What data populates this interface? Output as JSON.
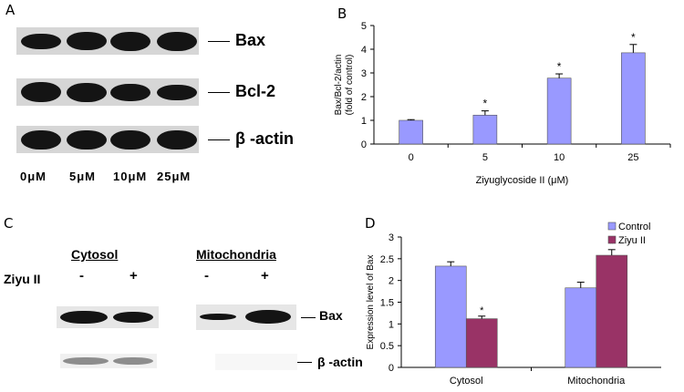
{
  "panelA": {
    "letter": "A",
    "blots": [
      {
        "label": "Bax",
        "intensities": [
          0.62,
          0.85,
          0.95,
          0.95
        ]
      },
      {
        "label": "Bcl-2",
        "intensities": [
          0.98,
          0.9,
          0.78,
          0.62
        ]
      },
      {
        "label": "β -actin",
        "intensities": [
          0.92,
          0.92,
          0.92,
          0.92
        ]
      }
    ],
    "concentrations": [
      "0μM",
      "5μM",
      "10μM",
      "25μM"
    ]
  },
  "panelC": {
    "letter": "C",
    "cytosol_heading": "Cytosol",
    "mito_heading": "Mitochondria",
    "treatment_label": "Ziyu II",
    "signs": [
      "-",
      "+",
      "-",
      "+"
    ],
    "bax_label": "Bax",
    "actin_label": "β -actin"
  },
  "chart_data": [
    {
      "panel": "B",
      "type": "bar",
      "categories": [
        "0",
        "5",
        "10",
        "25"
      ],
      "values": [
        1.0,
        1.22,
        2.78,
        3.85
      ],
      "errors": [
        0.03,
        0.18,
        0.18,
        0.35
      ],
      "significance": [
        "",
        "*",
        "*",
        "*"
      ],
      "xlabel": "Ziyuglycoside II (μM)",
      "ylabel": "Bax/Bcl-2/actin",
      "ylabel2": "(fold of control)",
      "ylim": [
        0,
        5
      ],
      "yticks": [
        "0",
        "1",
        "2",
        "3",
        "4",
        "5"
      ],
      "color": "#9999ff"
    },
    {
      "panel": "D",
      "type": "bar",
      "categories": [
        "Cytosol",
        "Mitochondria"
      ],
      "series": [
        {
          "name": "Control",
          "values": [
            2.33,
            1.83
          ],
          "errors": [
            0.1,
            0.13
          ],
          "color": "#9999ff"
        },
        {
          "name": "Ziyu II",
          "values": [
            1.12,
            2.58
          ],
          "errors": [
            0.06,
            0.13
          ],
          "color": "#993366"
        }
      ],
      "significance": [
        "*",
        "*"
      ],
      "ylabel": "Expression level of Bax",
      "ylim": [
        0,
        3
      ],
      "yticks": [
        "0",
        "0.5",
        "1",
        "1.5",
        "2",
        "2.5",
        "3"
      ],
      "legend": "top-right"
    }
  ]
}
